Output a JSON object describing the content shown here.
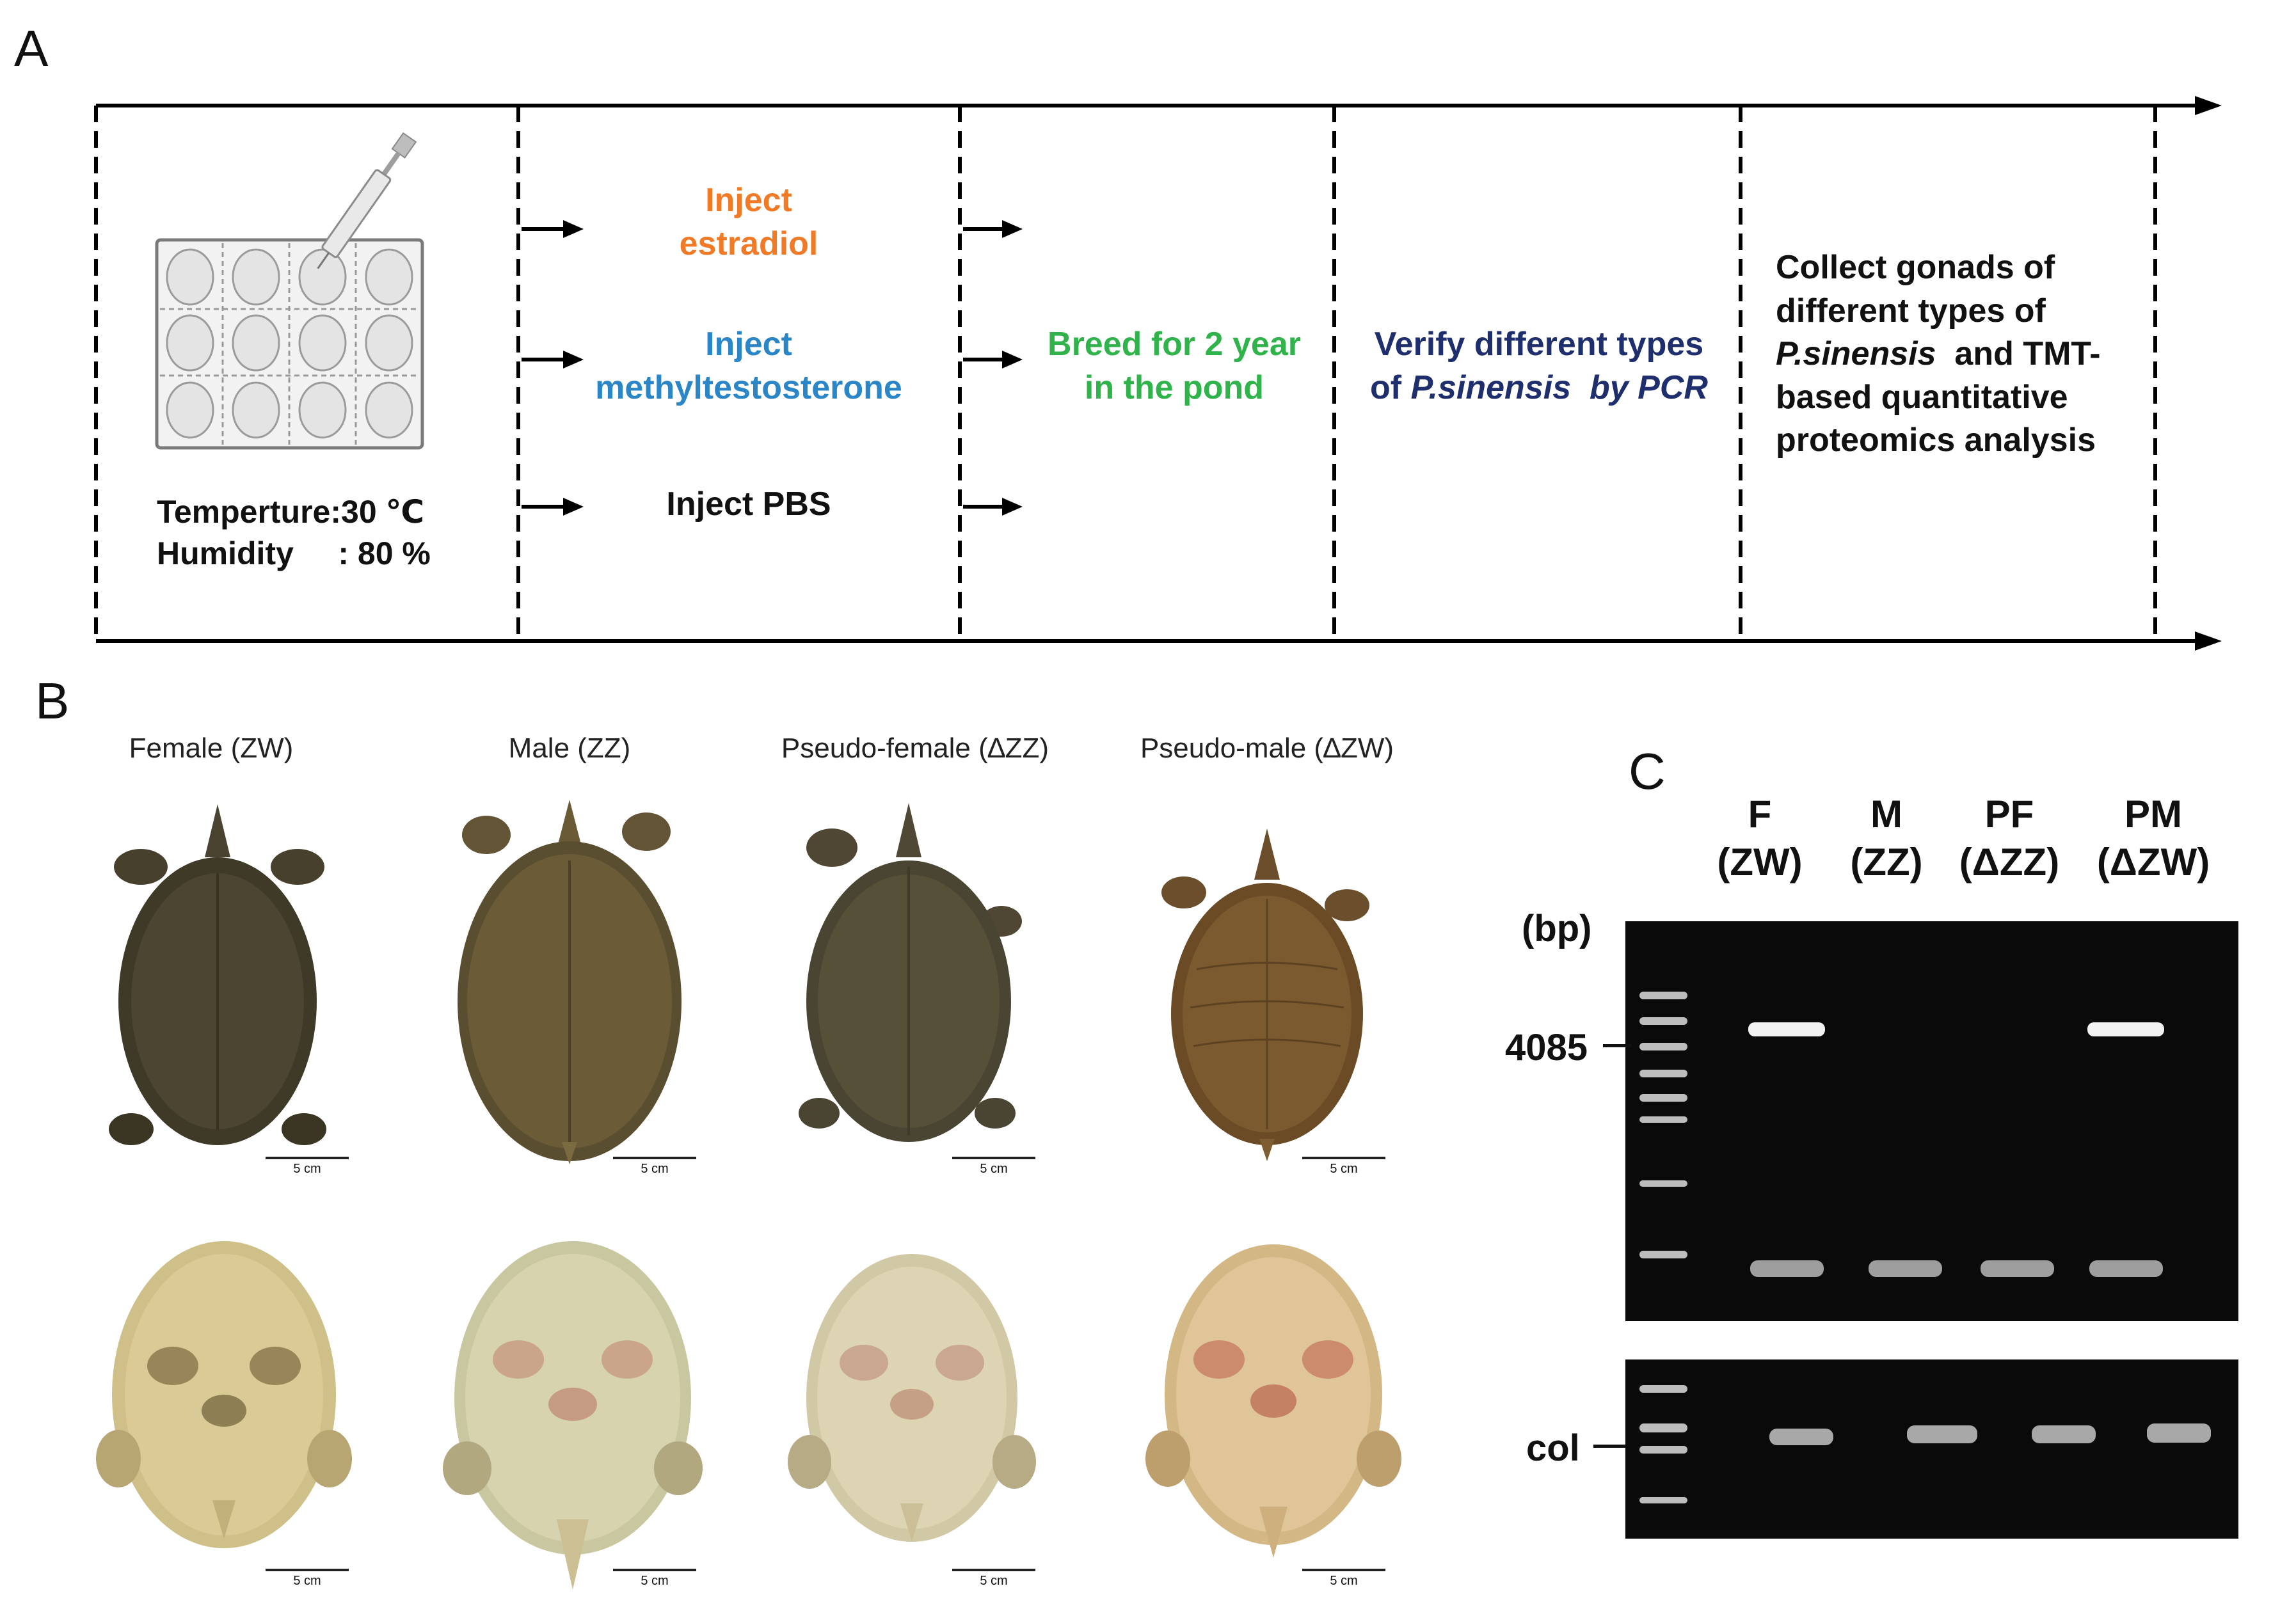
{
  "panels": {
    "a": "A",
    "b": "B",
    "c": "C"
  },
  "flow": {
    "conditions": [
      "Temperture:30 ℃",
      "Humidity     : 80 %"
    ],
    "step2": {
      "estradiol": [
        "Inject",
        "estradiol"
      ],
      "methyl": [
        "Inject",
        "methyltestosterone"
      ],
      "pbs": "Inject PBS"
    },
    "step3": [
      "Breed for 2 year",
      "in the pond"
    ],
    "step4": {
      "line1": "Verify different types",
      "prefix": "of ",
      "species": "P.sinensis",
      "mid": "  ",
      "suffix": "by PCR"
    },
    "step5": {
      "line1": "Collect gonads of",
      "line2": "different types of",
      "species": "P.sinensis",
      "after": "  and TMT-",
      "line4": "based quantitative",
      "line5": "proteomics analysis"
    },
    "colors": {
      "estradiol": "#f07a26",
      "methyl": "#2b86c8",
      "breed": "#2fb34a",
      "verify": "#1f2f6e",
      "black": "#111111"
    }
  },
  "types": {
    "labels": [
      "Female (ZW)",
      "Male (ZZ)",
      "Pseudo-female (∆ZZ)",
      "Pseudo-male (∆ZW)"
    ],
    "scale_label": "5 cm"
  },
  "gel": {
    "lanes": [
      {
        "top": "F",
        "bottom": "(ZW)"
      },
      {
        "top": "M",
        "bottom": "(ZZ)"
      },
      {
        "top": "PF",
        "bottom": "(ΔZZ)"
      },
      {
        "top": "PM",
        "bottom": "(ΔZW)"
      }
    ],
    "bp": "(bp)",
    "marker": "4085",
    "control": "col"
  }
}
